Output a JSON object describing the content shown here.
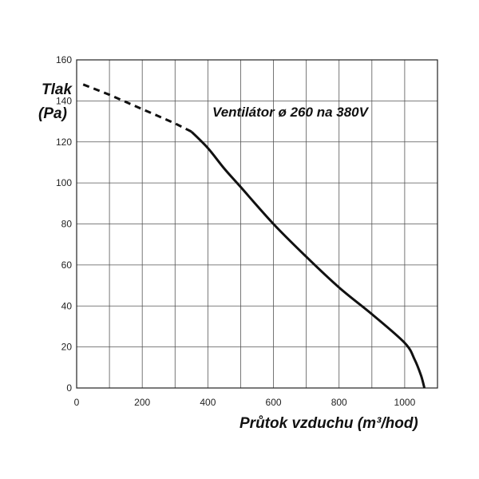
{
  "chart_data": {
    "type": "line",
    "title": "Ventilátor ø 260 na 380V",
    "ylabel_line1": "Tlak",
    "ylabel_line2": "(Pa)",
    "xlabel": "Průtok vzduchu (m³/hod)",
    "xlim": [
      0,
      1100
    ],
    "ylim": [
      0,
      160
    ],
    "x_ticks": [
      0,
      200,
      400,
      600,
      800,
      1000
    ],
    "y_ticks": [
      0,
      20,
      40,
      60,
      80,
      100,
      120,
      140,
      160
    ],
    "x_gridlines": [
      0,
      100,
      200,
      300,
      400,
      500,
      600,
      700,
      800,
      900,
      1000,
      1100
    ],
    "y_gridlines": [
      0,
      20,
      40,
      60,
      80,
      100,
      120,
      140,
      160
    ],
    "grid": true,
    "series": [
      {
        "style": "dashed",
        "x": [
          20,
          100,
          200,
          300,
          350
        ],
        "y": [
          148,
          143,
          136,
          129,
          125
        ]
      },
      {
        "style": "solid",
        "x": [
          350,
          400,
          450,
          500,
          600,
          700,
          800,
          900,
          1000,
          1030,
          1050,
          1060
        ],
        "y": [
          125,
          117,
          107,
          98,
          80,
          64,
          49,
          36,
          22,
          14,
          6,
          0
        ]
      }
    ]
  }
}
